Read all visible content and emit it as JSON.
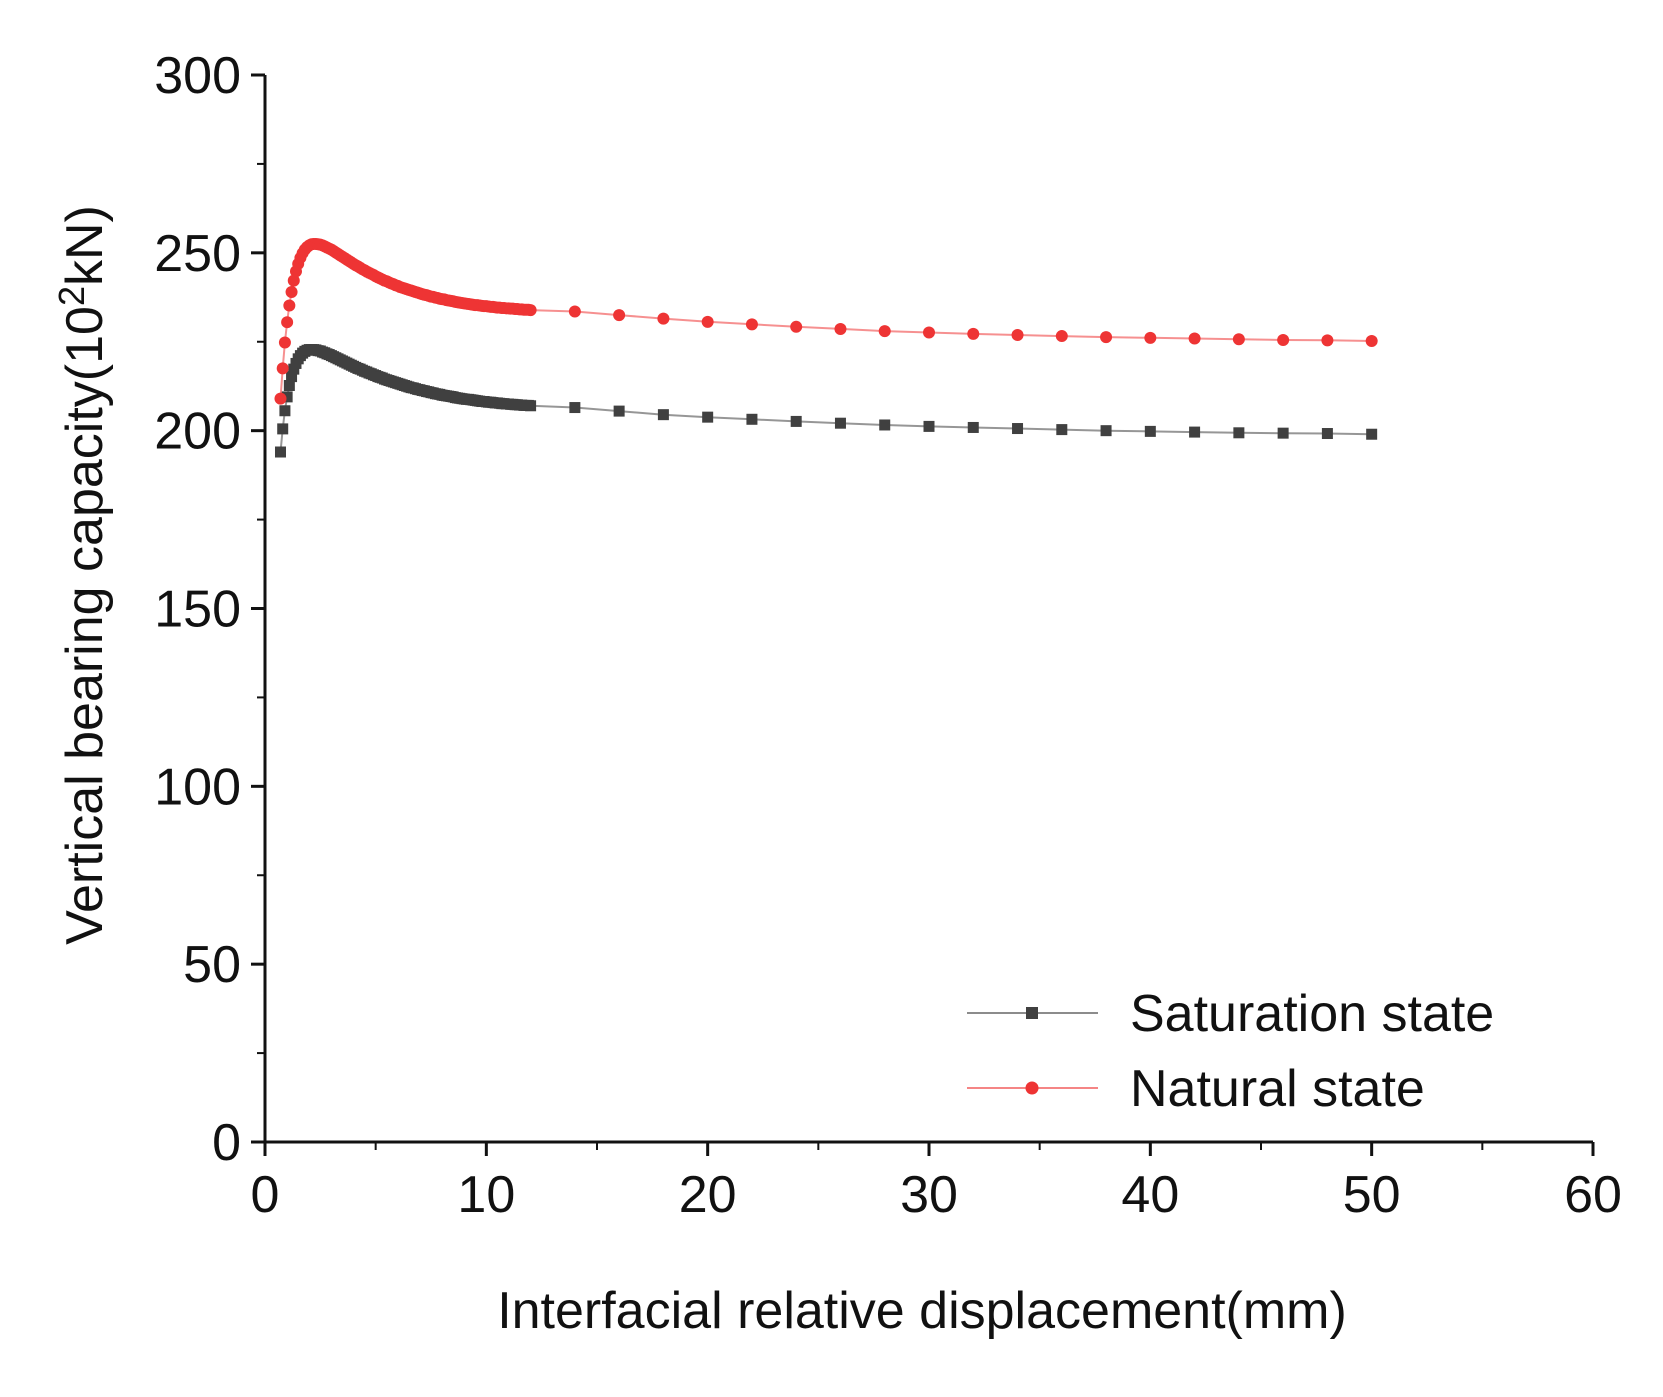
{
  "chart_data": {
    "type": "line",
    "title": "",
    "xlabel": "Interfacial relative displacement(mm)",
    "ylabel": {
      "prefix": "Vertical bearing capacity(10",
      "superscript": "2",
      "suffix": "kN)"
    },
    "xlim": [
      0,
      60
    ],
    "ylim": [
      0,
      300
    ],
    "xticks": [
      0,
      10,
      20,
      30,
      40,
      50,
      60
    ],
    "yticks": [
      0,
      50,
      100,
      150,
      200,
      250,
      300
    ],
    "grid": false,
    "legend_position": "bottom-right",
    "series": [
      {
        "name": "Saturation state",
        "color": "#404040",
        "marker": "square",
        "x": [
          0.7,
          0.8,
          0.9,
          1.0,
          1.1,
          1.2,
          1.3,
          1.4,
          1.5,
          1.6,
          1.7,
          1.8,
          1.9,
          2.0,
          2.1,
          2.2,
          2.3,
          2.4,
          2.5,
          2.6,
          2.7,
          2.8,
          2.9,
          3.0,
          3.1,
          3.2,
          3.3,
          3.4,
          3.5,
          3.6,
          3.7,
          3.8,
          3.9,
          4.0,
          4.1,
          4.2,
          4.3,
          4.4,
          4.5,
          4.6,
          4.7,
          4.8,
          4.9,
          5.0,
          5.1,
          5.2,
          5.3,
          5.4,
          5.5,
          5.6,
          5.7,
          5.8,
          5.9,
          6.0,
          6.1,
          6.2,
          6.3,
          6.4,
          6.5,
          6.6,
          6.7,
          6.8,
          6.9,
          7.0,
          7.1,
          7.2,
          7.3,
          7.4,
          7.5,
          7.6,
          7.7,
          7.8,
          7.9,
          8.0,
          8.1,
          8.2,
          8.3,
          8.4,
          8.5,
          8.6,
          8.7,
          8.8,
          8.9,
          9.0,
          9.1,
          9.2,
          9.3,
          9.4,
          9.5,
          9.6,
          9.7,
          9.8,
          9.9,
          10.0,
          10.1,
          10.2,
          10.3,
          10.4,
          10.5,
          10.6,
          10.7,
          10.8,
          10.9,
          11.0,
          11.1,
          11.2,
          11.3,
          11.4,
          11.5,
          11.6,
          11.7,
          11.8,
          11.9,
          12.0,
          14,
          16,
          18,
          20,
          22,
          24,
          26,
          28,
          30,
          32,
          34,
          36,
          38,
          40,
          42,
          44,
          46,
          48,
          50
        ],
        "values": [
          194,
          200.5,
          205.6,
          209.5,
          212.7,
          215.2,
          217.3,
          218.9,
          220.2,
          221.1,
          221.8,
          222.3,
          222.6,
          222.8,
          222.8,
          222.8,
          222.7,
          222.5,
          222.4,
          222.1,
          221.9,
          221.6,
          221.4,
          221.1,
          220.8,
          220.5,
          220.2,
          219.9,
          219.6,
          219.3,
          219.0,
          218.7,
          218.4,
          218.1,
          217.8,
          217.5,
          217.3,
          217.0,
          216.7,
          216.5,
          216.2,
          216.0,
          215.7,
          215.5,
          215.2,
          215.0,
          214.8,
          214.5,
          214.3,
          214.1,
          213.9,
          213.7,
          213.5,
          213.3,
          213.1,
          212.9,
          212.7,
          212.5,
          212.3,
          212.1,
          212.0,
          211.8,
          211.6,
          211.5,
          211.3,
          211.2,
          211.0,
          210.9,
          210.7,
          210.6,
          210.4,
          210.3,
          210.2,
          210.0,
          209.9,
          209.8,
          209.7,
          209.6,
          209.5,
          209.3,
          209.2,
          209.1,
          209.0,
          208.9,
          208.8,
          208.8,
          208.7,
          208.6,
          208.5,
          208.4,
          208.3,
          208.2,
          208.2,
          208.1,
          208.0,
          208.0,
          207.9,
          207.8,
          207.8,
          207.7,
          207.6,
          207.6,
          207.5,
          207.5,
          207.4,
          207.4,
          207.3,
          207.3,
          207.2,
          207.2,
          207.1,
          207.1,
          207.1,
          207.0,
          206.5,
          205.5,
          204.5,
          203.8,
          203.2,
          202.6,
          202.1,
          201.6,
          201.2,
          200.9,
          200.6,
          200.3,
          200.0,
          199.8,
          199.6,
          199.4,
          199.3,
          199.2,
          199.0
        ]
      },
      {
        "name": "Natural state",
        "color": "#ee3434",
        "marker": "circle",
        "x": [
          0.7,
          0.8,
          0.9,
          1.0,
          1.1,
          1.2,
          1.3,
          1.4,
          1.5,
          1.6,
          1.7,
          1.8,
          1.9,
          2.0,
          2.1,
          2.2,
          2.3,
          2.4,
          2.5,
          2.6,
          2.7,
          2.8,
          2.9,
          3.0,
          3.1,
          3.2,
          3.3,
          3.4,
          3.5,
          3.6,
          3.7,
          3.8,
          3.9,
          4.0,
          4.1,
          4.2,
          4.3,
          4.4,
          4.5,
          4.6,
          4.7,
          4.8,
          4.9,
          5.0,
          5.1,
          5.2,
          5.3,
          5.4,
          5.5,
          5.6,
          5.7,
          5.8,
          5.9,
          6.0,
          6.1,
          6.2,
          6.3,
          6.4,
          6.5,
          6.6,
          6.7,
          6.8,
          6.9,
          7.0,
          7.1,
          7.2,
          7.3,
          7.4,
          7.5,
          7.6,
          7.7,
          7.8,
          7.9,
          8.0,
          8.1,
          8.2,
          8.3,
          8.4,
          8.5,
          8.6,
          8.7,
          8.8,
          8.9,
          9.0,
          9.1,
          9.2,
          9.3,
          9.4,
          9.5,
          9.6,
          9.7,
          9.8,
          9.9,
          10.0,
          10.1,
          10.2,
          10.3,
          10.4,
          10.5,
          10.6,
          10.7,
          10.8,
          10.9,
          11.0,
          11.1,
          11.2,
          11.3,
          11.4,
          11.5,
          11.6,
          11.7,
          11.8,
          11.9,
          12.0,
          14,
          16,
          18,
          20,
          22,
          24,
          26,
          28,
          30,
          32,
          34,
          36,
          38,
          40,
          42,
          44,
          46,
          48,
          50
        ],
        "values": [
          209,
          217.5,
          224.8,
          230.5,
          235.2,
          239.0,
          242.2,
          244.8,
          246.9,
          248.6,
          249.9,
          250.9,
          251.6,
          252.1,
          252.4,
          252.5,
          252.5,
          252.4,
          252.3,
          252.1,
          251.8,
          251.5,
          251.2,
          250.9,
          250.5,
          250.1,
          249.7,
          249.3,
          248.9,
          248.5,
          248.1,
          247.7,
          247.3,
          246.9,
          246.5,
          246.2,
          245.8,
          245.4,
          245.1,
          244.7,
          244.4,
          244.1,
          243.8,
          243.4,
          243.1,
          242.8,
          242.5,
          242.2,
          242.0,
          241.7,
          241.4,
          241.2,
          240.9,
          240.7,
          240.4,
          240.2,
          240.0,
          239.8,
          239.6,
          239.4,
          239.2,
          239.0,
          238.8,
          238.6,
          238.4,
          238.2,
          238.1,
          237.9,
          237.7,
          237.6,
          237.4,
          237.3,
          237.1,
          237.0,
          236.9,
          236.7,
          236.6,
          236.5,
          236.4,
          236.2,
          236.1,
          236.0,
          235.9,
          235.8,
          235.7,
          235.6,
          235.5,
          235.4,
          235.3,
          235.3,
          235.2,
          235.1,
          235.0,
          235.0,
          234.9,
          234.8,
          234.8,
          234.7,
          234.6,
          234.6,
          234.5,
          234.5,
          234.4,
          234.4,
          234.3,
          234.3,
          234.2,
          234.2,
          234.1,
          234.1,
          234.0,
          234.0,
          234.0,
          233.9,
          233.5,
          232.5,
          231.5,
          230.6,
          229.9,
          229.2,
          228.6,
          228.0,
          227.6,
          227.2,
          226.9,
          226.6,
          226.3,
          226.1,
          225.9,
          225.7,
          225.5,
          225.4,
          225.2
        ]
      }
    ]
  }
}
